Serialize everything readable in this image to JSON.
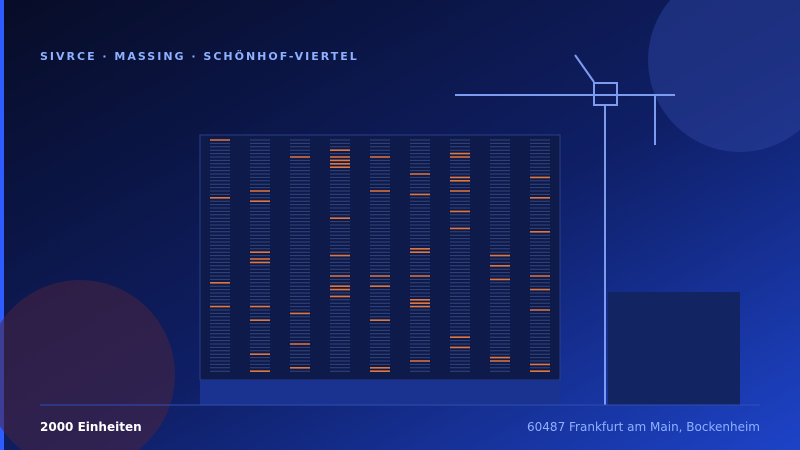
{
  "header": {
    "title": "SIVRCE · MASSING · SCHÖNHOF-VIERTEL"
  },
  "footer": {
    "units": "2000 Einheiten",
    "address": "60487 Frankfurt am Main, Bockenheim"
  }
}
